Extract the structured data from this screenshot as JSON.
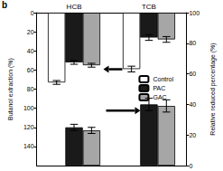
{
  "chart_data": {
    "type": "bar",
    "title": "b",
    "categories": [
      "HCB",
      "TCB"
    ],
    "y_label": "Butanol extraction (%)",
    "y2_label": "Relative reduced percentage (%)",
    "ylim": [
      0,
      160
    ],
    "yticks": [
      0,
      20,
      40,
      60,
      80,
      100,
      120,
      140
    ],
    "y2lim": [
      0,
      100
    ],
    "y2ticks": [
      0,
      20,
      40,
      60,
      80,
      100
    ],
    "grid": false,
    "legend": "right",
    "series": [
      {
        "name": "Control",
        "color": "#ffffff",
        "values": [
          73,
          59
        ],
        "errors": [
          2,
          3
        ]
      },
      {
        "name": "PAC",
        "color": "#1a1a1a",
        "values": [
          52,
          26
        ],
        "errors": [
          2,
          3
        ]
      },
      {
        "name": "GAC",
        "color": "#a6a6a6",
        "values": [
          55,
          28
        ],
        "errors": [
          2,
          3
        ]
      },
      {
        "name": "PAC",
        "color": "#1a1a1a",
        "values": [
          25,
          40
        ],
        "errors": [
          2,
          4
        ],
        "axis": "y2"
      },
      {
        "name": "GAC",
        "color": "#a6a6a6",
        "values": [
          23,
          39
        ],
        "errors": [
          2,
          4
        ],
        "axis": "y2"
      }
    ]
  }
}
